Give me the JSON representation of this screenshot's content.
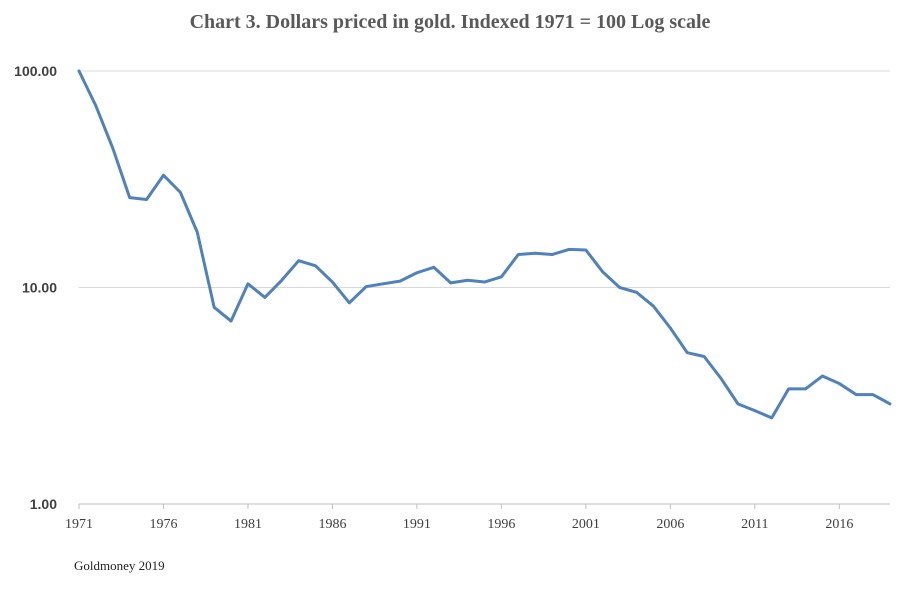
{
  "chart_data": {
    "type": "line",
    "title": "Chart 3. Dollars priced in gold. Indexed 1971 = 100 Log scale",
    "source": "Goldmoney 2019",
    "yscale": "log",
    "ylim": [
      1,
      100
    ],
    "ytick_labels": [
      "100.00",
      "10.00",
      "1.00"
    ],
    "ytick_values": [
      100,
      10,
      1
    ],
    "xlim": [
      1971,
      2019
    ],
    "xtick_labels": [
      "1971",
      "1976",
      "1981",
      "1986",
      "1991",
      "1996",
      "2001",
      "2006",
      "2011",
      "2016"
    ],
    "xtick_values": [
      1971,
      1976,
      1981,
      1986,
      1991,
      1996,
      2001,
      2006,
      2011,
      2016
    ],
    "grid": true,
    "legend": "none",
    "series_color": "#4f81bd",
    "series": [
      {
        "x": [
          1971,
          1972,
          1973,
          1974,
          1975,
          1976,
          1977,
          1978,
          1979,
          1980,
          1981,
          1982,
          1983,
          1984,
          1985,
          1986,
          1987,
          1988,
          1989,
          1990,
          1991,
          1992,
          1993,
          1994,
          1995,
          1996,
          1997,
          1998,
          1999,
          2000,
          2001,
          2002,
          2003,
          2004,
          2005,
          2006,
          2007,
          2008,
          2009,
          2010,
          2011,
          2012,
          2013,
          2014,
          2015,
          2016,
          2017,
          2018,
          2019
        ],
        "values": [
          100.0,
          69.0,
          44.0,
          26.0,
          25.5,
          33.0,
          27.5,
          18.0,
          8.1,
          7.0,
          10.4,
          9.0,
          10.8,
          13.3,
          12.6,
          10.6,
          8.5,
          10.1,
          10.4,
          10.7,
          11.7,
          12.4,
          10.5,
          10.8,
          10.6,
          11.2,
          14.2,
          14.4,
          14.2,
          15.0,
          14.9,
          11.8,
          10.0,
          9.5,
          8.2,
          6.5,
          5.0,
          4.8,
          3.8,
          2.9,
          2.7,
          2.5,
          3.4,
          3.4,
          3.9,
          3.6,
          3.2,
          3.2,
          2.9
        ]
      }
    ]
  }
}
